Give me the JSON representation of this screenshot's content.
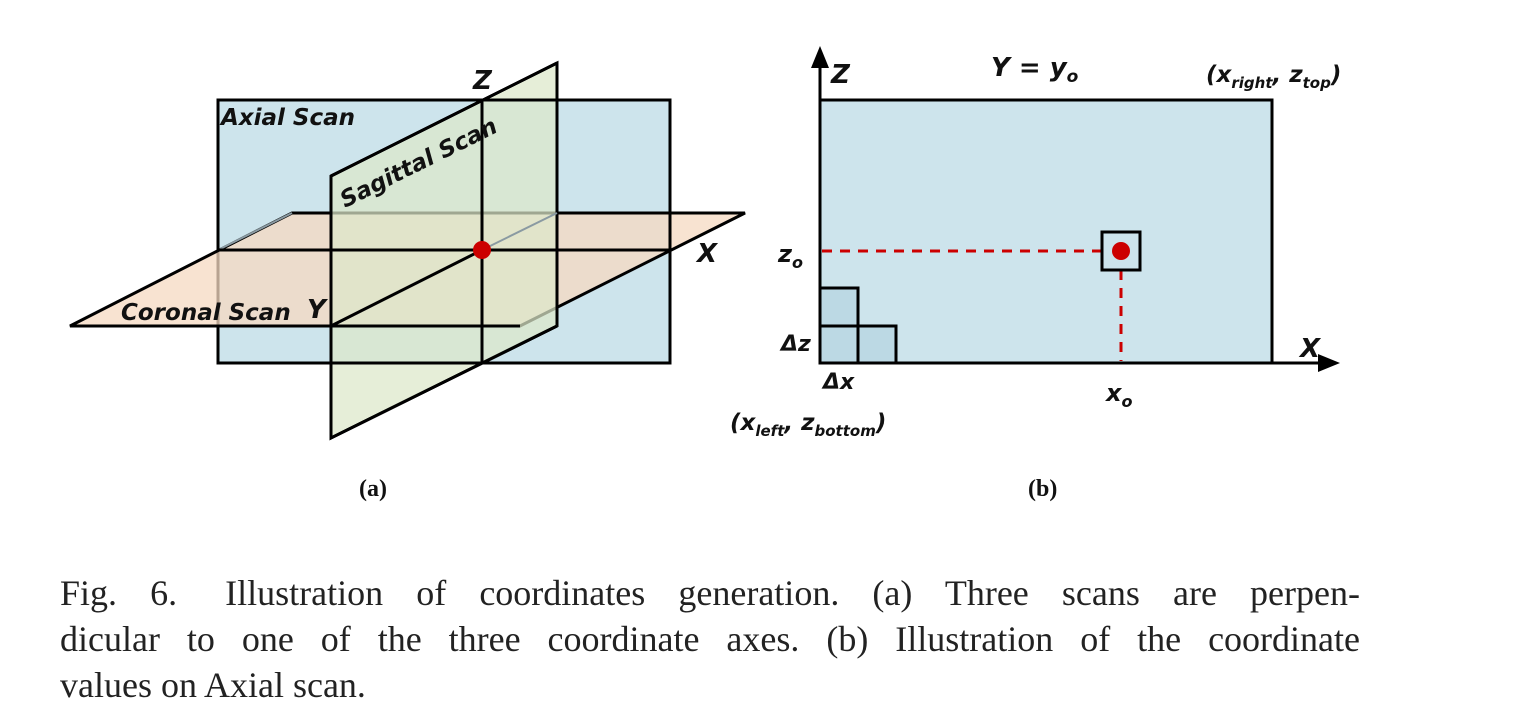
{
  "colors": {
    "axial": "#cde4ec",
    "sagittal": "#dde8c9",
    "coronal": "#f5d9c2",
    "point": "#cc0000",
    "guide": "#cc0000",
    "stroke": "#000000"
  },
  "panel_a": {
    "axis_z": "Z",
    "axis_x": "X",
    "axis_y": "Y",
    "axial_label": "Axial Scan",
    "sagittal_label": "Sagittal Scan",
    "coronal_label": "Coronal Scan",
    "sublabel": "(a)"
  },
  "panel_b": {
    "axis_z": "Z",
    "axis_x": "X",
    "plane_eq": {
      "base": "Y = y",
      "sub": "o"
    },
    "z_o": {
      "base": "z",
      "sub": "o"
    },
    "x_o": {
      "base": "x",
      "sub": "o"
    },
    "delta_z": "Δz",
    "delta_x": "Δx",
    "top_right": {
      "open": "(x",
      "sub1": "right",
      "comma": ", z",
      "sub2": "top",
      "close": ")"
    },
    "bottom_left": {
      "open": "(x",
      "sub1": "left",
      "comma": ", z",
      "sub2": "bottom",
      "close": ")"
    },
    "sublabel": "(b)"
  },
  "caption": {
    "figure_number": "Fig. 6.",
    "line1": "Illustration of coordinates generation. (a) Three scans are perpen-",
    "line2": "dicular to one of the three coordinate axes. (b) Illustration of the coordinate",
    "line3": "values on Axial scan."
  }
}
